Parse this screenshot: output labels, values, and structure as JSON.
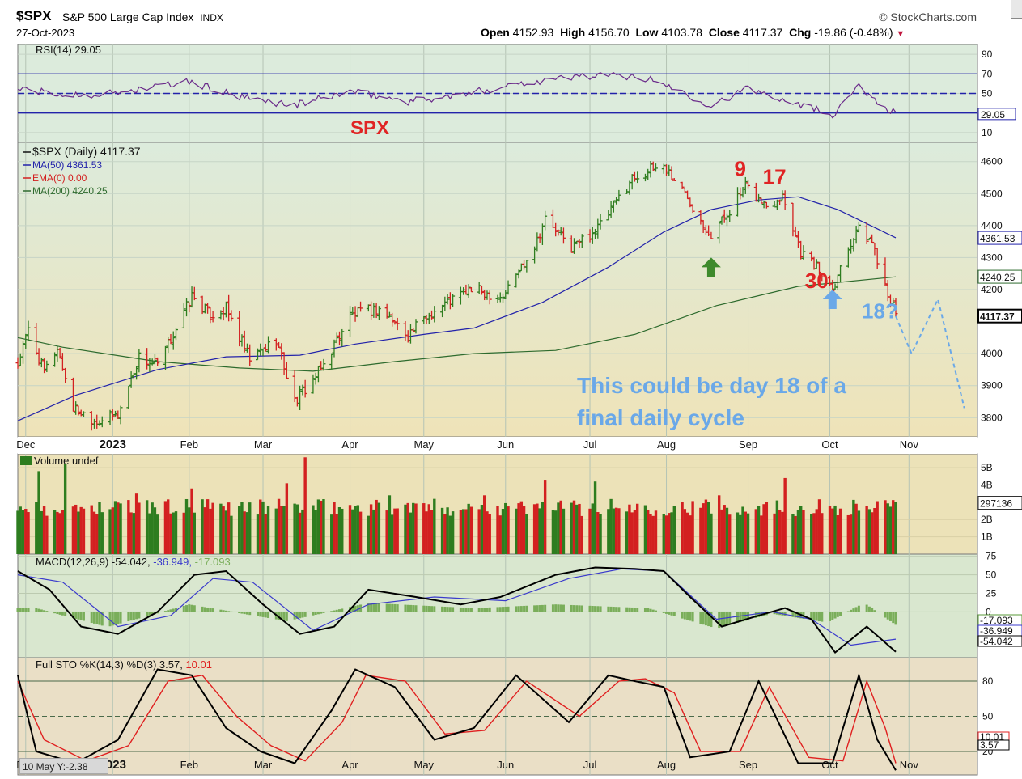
{
  "header": {
    "symbol": "$SPX",
    "name": "S&P 500 Large Cap Index",
    "exchange": "INDX",
    "date": "27-Oct-2023",
    "brand": "© StockCharts.com",
    "open_label": "Open",
    "open": "4152.93",
    "high_label": "High",
    "high": "4156.70",
    "low_label": "Low",
    "low": "4103.78",
    "close_label": "Close",
    "close": "4117.37",
    "chg_label": "Chg",
    "chg": "-19.86 (-0.48%)"
  },
  "colors": {
    "up": "#2e7d1f",
    "down": "#d32020",
    "ma50": "#2222aa",
    "ma200": "#2e6b2e",
    "annotation_red": "#e02424",
    "annotation_blue": "#6aa8e8",
    "green_arrow": "#3e8a2c"
  },
  "chart_data": [
    {
      "type": "line",
      "panel": "rsi",
      "legend": "RSI(14) 29.05",
      "ylim": [
        0,
        100
      ],
      "tick_labels": [
        "90",
        "70",
        "50",
        "30",
        "10"
      ],
      "ticks": [
        90,
        70,
        50,
        30,
        10
      ],
      "levels": [
        70,
        50,
        30
      ],
      "last_value": 29.05,
      "last_label": "29.05",
      "annotation": "SPX",
      "x": [
        "2022-11-28",
        "2022-12-15",
        "2023-01-03",
        "2023-02-01",
        "2023-02-20",
        "2023-03-13",
        "2023-04-03",
        "2023-04-25",
        "2023-05-15",
        "2023-06-05",
        "2023-06-30",
        "2023-07-20",
        "2023-07-31",
        "2023-08-18",
        "2023-09-01",
        "2023-09-20",
        "2023-10-03",
        "2023-10-12",
        "2023-10-27"
      ],
      "values": [
        55,
        48,
        50,
        62,
        46,
        38,
        52,
        42,
        48,
        60,
        68,
        68,
        60,
        38,
        55,
        40,
        28,
        58,
        29
      ]
    },
    {
      "type": "line",
      "panel": "price",
      "series_labels": [
        "$SPX (Daily) 4117.37",
        "MA(50) 4361.53",
        "EMA(0) 0.00",
        "MA(200) 4240.25"
      ],
      "ylim": [
        3740,
        4660
      ],
      "tick_labels": [
        "4600",
        "4500",
        "4400",
        "4300",
        "4200",
        "4000",
        "3900",
        "3800"
      ],
      "ticks": [
        4600,
        4500,
        4400,
        4300,
        4200,
        4000,
        3900,
        3800
      ],
      "price_tags": [
        {
          "label": "4361.53",
          "value": 4361.53
        },
        {
          "label": "4240.25",
          "value": 4240.25
        },
        {
          "label": "4117.37",
          "value": 4117.37
        }
      ],
      "x_labels": [
        {
          "label": "Dec",
          "date": "2022-12-01"
        },
        {
          "label": "2023",
          "date": "2023-01-03"
        },
        {
          "label": "Feb",
          "date": "2023-02-01"
        },
        {
          "label": "Mar",
          "date": "2023-03-01"
        },
        {
          "label": "Apr",
          "date": "2023-04-03"
        },
        {
          "label": "May",
          "date": "2023-05-01"
        },
        {
          "label": "Jun",
          "date": "2023-06-01"
        },
        {
          "label": "Jul",
          "date": "2023-07-03"
        },
        {
          "label": "Aug",
          "date": "2023-08-01"
        },
        {
          "label": "Sep",
          "date": "2023-09-01"
        },
        {
          "label": "Oct",
          "date": "2023-10-02"
        },
        {
          "label": "Nov",
          "date": "2023-11-01"
        }
      ],
      "series": [
        {
          "name": "$SPX (Daily)",
          "x": [
            "2022-11-28",
            "2022-12-02",
            "2022-12-08",
            "2022-12-13",
            "2022-12-19",
            "2022-12-28",
            "2023-01-05",
            "2023-01-13",
            "2023-01-20",
            "2023-02-02",
            "2023-02-09",
            "2023-02-15",
            "2023-02-24",
            "2023-03-06",
            "2023-03-13",
            "2023-03-23",
            "2023-04-03",
            "2023-04-14",
            "2023-04-25",
            "2023-05-05",
            "2023-05-18",
            "2023-05-31",
            "2023-06-12",
            "2023-06-16",
            "2023-06-26",
            "2023-07-07",
            "2023-07-19",
            "2023-07-31",
            "2023-08-09",
            "2023-08-18",
            "2023-08-31",
            "2023-09-08",
            "2023-09-14",
            "2023-09-21",
            "2023-09-27",
            "2023-10-03",
            "2023-10-12",
            "2023-10-18",
            "2023-10-27"
          ],
          "values": [
            3965,
            4075,
            3940,
            4020,
            3830,
            3790,
            3808,
            3990,
            3960,
            4180,
            4120,
            4140,
            3980,
            4045,
            3850,
            3950,
            4120,
            4140,
            4060,
            4135,
            4200,
            4180,
            4340,
            4420,
            4330,
            4400,
            4550,
            4590,
            4490,
            4370,
            4520,
            4460,
            4500,
            4320,
            4270,
            4210,
            4390,
            4350,
            4117
          ]
        },
        {
          "name": "MA(50)",
          "x": [
            "2022-11-28",
            "2022-12-20",
            "2023-01-20",
            "2023-02-15",
            "2023-03-15",
            "2023-04-05",
            "2023-05-01",
            "2023-05-20",
            "2023-06-15",
            "2023-07-10",
            "2023-07-31",
            "2023-08-18",
            "2023-09-05",
            "2023-09-20",
            "2023-10-05",
            "2023-10-27"
          ],
          "values": [
            3790,
            3870,
            3950,
            3990,
            3995,
            4030,
            4060,
            4080,
            4160,
            4270,
            4380,
            4450,
            4480,
            4490,
            4450,
            4362
          ]
        },
        {
          "name": "MA(200)",
          "x": [
            "2022-11-28",
            "2022-12-15",
            "2023-01-20",
            "2023-02-20",
            "2023-03-20",
            "2023-04-20",
            "2023-05-20",
            "2023-06-20",
            "2023-07-20",
            "2023-08-20",
            "2023-09-20",
            "2023-10-27"
          ],
          "values": [
            4050,
            4020,
            3975,
            3955,
            3945,
            3975,
            4000,
            4010,
            4060,
            4150,
            4210,
            4240
          ]
        }
      ],
      "projection": {
        "x": [
          "2023-10-27",
          "2023-11-02",
          "2023-11-12",
          "2023-11-22"
        ],
        "values": [
          4117,
          4000,
          4170,
          3830
        ]
      },
      "annotations": [
        {
          "label": "9",
          "date": "2023-08-29",
          "value": 4555,
          "color": "red"
        },
        {
          "label": "17",
          "date": "2023-09-11",
          "value": 4530,
          "color": "red"
        },
        {
          "label": "30",
          "date": "2023-09-27",
          "value": 4205,
          "color": "red"
        },
        {
          "label": "18?",
          "date": "2023-10-21",
          "value": 4110,
          "color": "blue"
        }
      ],
      "arrows": [
        {
          "color": "green",
          "date": "2023-08-18",
          "value": 4300
        },
        {
          "color": "blue",
          "date": "2023-10-03",
          "value": 4200
        }
      ],
      "note_lines": [
        "This could be day 18 of a",
        "final daily cycle"
      ]
    },
    {
      "type": "bar",
      "panel": "volume",
      "legend": "Volume undef",
      "tick_labels": [
        "5B",
        "4B",
        "2B",
        "1B"
      ],
      "ticks": [
        5,
        4,
        2,
        1
      ],
      "last_label": "297136",
      "last_value": 2.97,
      "ylim": [
        0,
        5.8
      ],
      "x": [
        "2022-12-06",
        "2022-12-16",
        "2023-01-12",
        "2023-02-02",
        "2023-03-10",
        "2023-03-17",
        "2023-04-18",
        "2023-05-24",
        "2023-06-16",
        "2023-07-05",
        "2023-08-21",
        "2023-09-15",
        "2023-10-27"
      ],
      "values": [
        4.8,
        5.2,
        3.5,
        3.8,
        4.1,
        5.6,
        3.4,
        3.4,
        4.3,
        4.2,
        3.4,
        4.4,
        3.0
      ],
      "typical_range": [
        2.2,
        3.2
      ]
    },
    {
      "type": "line",
      "panel": "macd",
      "legend": "MACD(12,26,9)",
      "legend_values": [
        "-54.042",
        "-36.949",
        "-17.093"
      ],
      "ticks": [
        75,
        50,
        25,
        0
      ],
      "tick_labels": [
        "75",
        "50",
        "25",
        "0"
      ],
      "value_tags": [
        {
          "label": "-17.093",
          "value": -17.093
        },
        {
          "label": "-36.949",
          "value": -36.949
        },
        {
          "label": "-54.042",
          "value": -54.042
        }
      ],
      "ylim": [
        -62,
        78
      ],
      "series": [
        {
          "name": "MACD",
          "x": [
            "2022-11-28",
            "2022-12-10",
            "2022-12-22",
            "2023-01-05",
            "2023-01-20",
            "2023-02-03",
            "2023-02-15",
            "2023-03-01",
            "2023-03-15",
            "2023-03-28",
            "2023-04-10",
            "2023-04-28",
            "2023-05-15",
            "2023-05-30",
            "2023-06-20",
            "2023-07-05",
            "2023-07-20",
            "2023-07-31",
            "2023-08-10",
            "2023-08-22",
            "2023-09-05",
            "2023-09-15",
            "2023-09-25",
            "2023-10-04",
            "2023-10-16",
            "2023-10-27"
          ],
          "values": [
            55,
            30,
            -20,
            -30,
            0,
            50,
            55,
            10,
            -30,
            -20,
            30,
            20,
            10,
            20,
            50,
            60,
            58,
            55,
            20,
            -20,
            -5,
            5,
            -10,
            -55,
            -20,
            -54
          ]
        },
        {
          "name": "Signal",
          "x": [
            "2022-11-28",
            "2022-12-15",
            "2023-01-05",
            "2023-01-25",
            "2023-02-10",
            "2023-02-25",
            "2023-03-20",
            "2023-04-10",
            "2023-05-05",
            "2023-06-01",
            "2023-06-25",
            "2023-07-15",
            "2023-07-31",
            "2023-08-20",
            "2023-09-10",
            "2023-09-25",
            "2023-10-10",
            "2023-10-27"
          ],
          "values": [
            50,
            40,
            -20,
            -5,
            45,
            40,
            -25,
            10,
            20,
            15,
            45,
            58,
            55,
            -10,
            0,
            -10,
            -45,
            -37
          ]
        }
      ],
      "histogram": {
        "x": [
          "2022-12-05",
          "2023-01-01",
          "2023-02-01",
          "2023-03-10",
          "2023-04-10",
          "2023-05-20",
          "2023-06-20",
          "2023-07-25",
          "2023-08-20",
          "2023-09-10",
          "2023-10-01",
          "2023-10-15",
          "2023-10-27"
        ],
        "values": [
          5,
          -20,
          10,
          -12,
          12,
          5,
          10,
          5,
          -22,
          -2,
          -14,
          12,
          -17
        ]
      }
    },
    {
      "type": "line",
      "panel": "stochastic",
      "legend": "Full STO %K(14,3) %D(3)",
      "legend_values": [
        "3.57",
        "10.01"
      ],
      "ylim": [
        0,
        100
      ],
      "ticks": [
        80,
        50,
        20
      ],
      "tick_labels": [
        "80",
        "50",
        "20"
      ],
      "value_tags": [
        {
          "label": "10.01",
          "value": 10.01
        },
        {
          "label": "3.57",
          "value": 3.57
        }
      ],
      "levels": [
        80,
        50,
        20
      ],
      "series": [
        {
          "name": "%K",
          "x": [
            "2022-11-28",
            "2022-12-05",
            "2022-12-20",
            "2023-01-05",
            "2023-01-20",
            "2023-02-02",
            "2023-02-15",
            "2023-02-28",
            "2023-03-13",
            "2023-03-27",
            "2023-04-05",
            "2023-04-20",
            "2023-05-05",
            "2023-05-20",
            "2023-06-05",
            "2023-06-25",
            "2023-07-10",
            "2023-07-20",
            "2023-07-31",
            "2023-08-10",
            "2023-08-25",
            "2023-09-05",
            "2023-09-20",
            "2023-10-03",
            "2023-10-13",
            "2023-10-20",
            "2023-10-27"
          ],
          "values": [
            85,
            20,
            10,
            30,
            90,
            85,
            40,
            20,
            10,
            55,
            90,
            75,
            30,
            40,
            85,
            45,
            85,
            80,
            75,
            15,
            20,
            80,
            10,
            10,
            85,
            30,
            4
          ]
        },
        {
          "name": "%D",
          "x": [
            "2022-11-28",
            "2022-12-08",
            "2022-12-24",
            "2023-01-09",
            "2023-01-24",
            "2023-02-06",
            "2023-02-19",
            "2023-03-04",
            "2023-03-17",
            "2023-03-31",
            "2023-04-09",
            "2023-04-24",
            "2023-05-09",
            "2023-05-24",
            "2023-06-09",
            "2023-06-29",
            "2023-07-14",
            "2023-07-24",
            "2023-08-04",
            "2023-08-14",
            "2023-08-29",
            "2023-09-09",
            "2023-09-24",
            "2023-10-07",
            "2023-10-16",
            "2023-10-23",
            "2023-10-27"
          ],
          "values": [
            80,
            30,
            12,
            25,
            80,
            85,
            50,
            25,
            12,
            45,
            85,
            80,
            35,
            38,
            80,
            50,
            80,
            82,
            70,
            20,
            20,
            75,
            15,
            12,
            80,
            40,
            10
          ]
        }
      ]
    }
  ],
  "status_text": "10 May Y:-2.38"
}
